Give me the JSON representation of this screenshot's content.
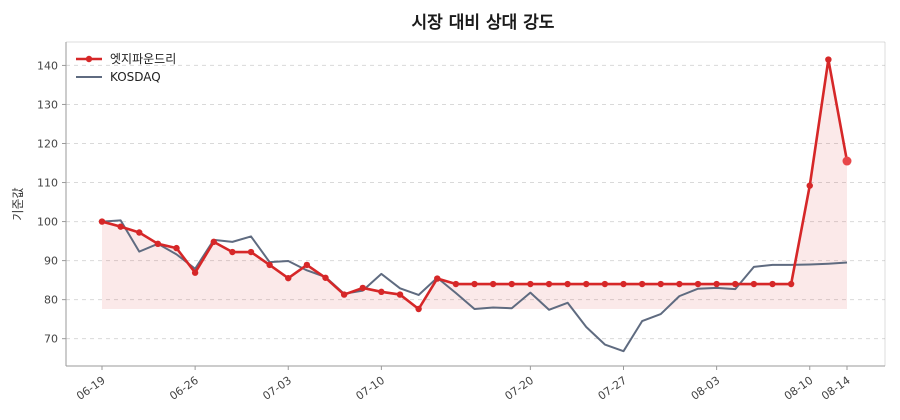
{
  "chart_data": {
    "type": "line",
    "title": "시장 대비 상대 강도",
    "ylabel": "기준값",
    "xlabel": "",
    "ylim": [
      63,
      146
    ],
    "yticks": [
      70,
      80,
      90,
      100,
      110,
      120,
      130,
      140
    ],
    "x": [
      "06-19",
      "06-20",
      "06-21",
      "06-22",
      "06-23",
      "06-26",
      "06-27",
      "06-28",
      "06-29",
      "06-30",
      "07-03",
      "07-04",
      "07-05",
      "07-06",
      "07-07",
      "07-10",
      "07-11",
      "07-12",
      "07-13",
      "07-14",
      "07-17",
      "07-18",
      "07-19",
      "07-20",
      "07-21",
      "07-24",
      "07-25",
      "07-26",
      "07-27",
      "07-28",
      "07-31",
      "08-01",
      "08-02",
      "08-03",
      "08-04",
      "08-07",
      "08-08",
      "08-09",
      "08-10",
      "08-11",
      "08-14"
    ],
    "xticks": [
      "06-19",
      "06-26",
      "07-03",
      "07-10",
      "07-20",
      "07-27",
      "08-03",
      "08-10",
      "08-14"
    ],
    "series": [
      {
        "name": "엣지파운드리",
        "color": "#d62728",
        "values": [
          100,
          98.7,
          97.2,
          94.3,
          93.2,
          86.9,
          94.8,
          92.2,
          92.2,
          88.9,
          85.5,
          88.9,
          85.6,
          81.3,
          83.0,
          82.0,
          81.3,
          77.6,
          85.4,
          84.0,
          84.0,
          84.0,
          84.0,
          84.0,
          84.0,
          84.0,
          84.0,
          84.0,
          84.0,
          84.0,
          84.0,
          84.0,
          84.0,
          84.0,
          84.0,
          84.0,
          84.0,
          84.0,
          109.2,
          141.5,
          115.5
        ]
      },
      {
        "name": "KOSDAQ",
        "color": "#5f6b80",
        "values": [
          100,
          100.3,
          92.3,
          94.3,
          91.6,
          87.9,
          95.3,
          94.8,
          96.2,
          89.6,
          89.9,
          87.5,
          85.8,
          81.5,
          82.3,
          86.6,
          82.9,
          81.2,
          85.6,
          81.7,
          77.6,
          78.0,
          77.8,
          81.8,
          77.4,
          79.2,
          73.0,
          68.5,
          66.8,
          74.5,
          76.3,
          80.9,
          82.8,
          83.0,
          82.7,
          88.4,
          88.9,
          88.9,
          89.0,
          89.2,
          89.5
        ]
      }
    ],
    "fill_baseline": 77.6,
    "grid": true,
    "legend": "top-left"
  }
}
